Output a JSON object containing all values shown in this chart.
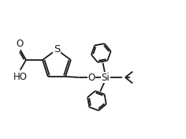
{
  "background": "#ffffff",
  "line_color": "#1a1a1a",
  "line_width": 1.3,
  "font_size": 8.5,
  "fig_width": 2.36,
  "fig_height": 1.76,
  "dpi": 100,
  "xlim": [
    0,
    11
  ],
  "ylim": [
    0,
    8
  ]
}
